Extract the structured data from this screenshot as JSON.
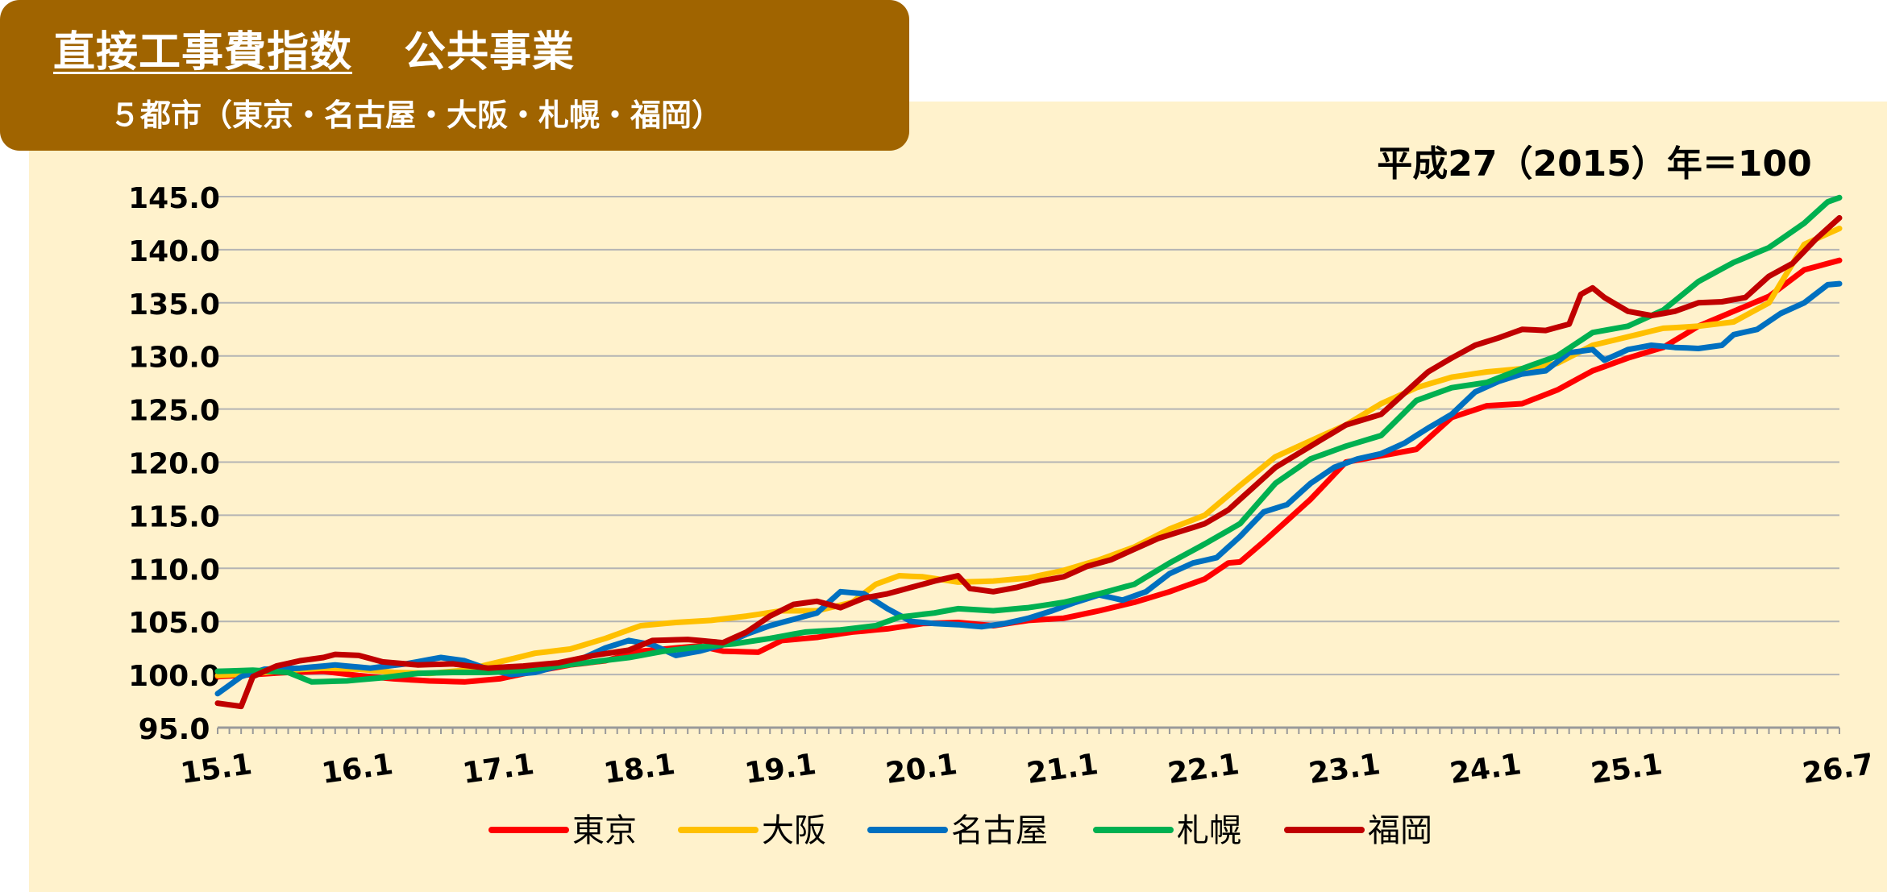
{
  "header": {
    "title": "直接工事費指数",
    "title_suffix": "公共事業",
    "subtitle": "５都市（東京・名古屋・大阪・札幌・福岡）"
  },
  "colors": {
    "title_bg": "#a06400",
    "panel_bg": "#fff2cc",
    "grid": "#b4b4b4"
  },
  "chart_data": {
    "type": "line",
    "base_note": "平成27（2015）年＝100",
    "x_start": "15.1",
    "x_end": "26.7",
    "x_ticks": [
      {
        "month": 0,
        "label": "15.1"
      },
      {
        "month": 12,
        "label": "16.1"
      },
      {
        "month": 24,
        "label": "17.1"
      },
      {
        "month": 36,
        "label": "18.1"
      },
      {
        "month": 48,
        "label": "19.1"
      },
      {
        "month": 60,
        "label": "20.1"
      },
      {
        "month": 72,
        "label": "21.1"
      },
      {
        "month": 84,
        "label": "22.1"
      },
      {
        "month": 96,
        "label": "23.1"
      },
      {
        "month": 108,
        "label": "24.1"
      },
      {
        "month": 120,
        "label": "25.1"
      },
      {
        "month": 138,
        "label": "26.7"
      }
    ],
    "y_ticks": [
      "145.0",
      "140.0",
      "135.0",
      "130.0",
      "125.0",
      "120.0",
      "115.0",
      "110.0",
      "105.0",
      "100.0",
      "95.0"
    ],
    "ylim": [
      95,
      145
    ],
    "grid": true,
    "legend_position": "bottom",
    "series": [
      {
        "name": "東京",
        "color": "#ff0000",
        "key_points": [
          [
            0,
            99.8
          ],
          [
            3,
            100.0
          ],
          [
            6,
            100.2
          ],
          [
            9,
            100.3
          ],
          [
            12,
            99.9
          ],
          [
            15,
            99.6
          ],
          [
            18,
            99.4
          ],
          [
            21,
            99.3
          ],
          [
            24,
            99.6
          ],
          [
            27,
            100.3
          ],
          [
            30,
            100.9
          ],
          [
            33,
            101.3
          ],
          [
            36,
            102.2
          ],
          [
            38,
            102.4
          ],
          [
            41,
            102.7
          ],
          [
            43,
            102.2
          ],
          [
            46,
            102.1
          ],
          [
            48,
            103.2
          ],
          [
            51,
            103.5
          ],
          [
            54,
            104.0
          ],
          [
            57,
            104.3
          ],
          [
            60,
            104.8
          ],
          [
            63,
            104.9
          ],
          [
            66,
            104.6
          ],
          [
            69,
            105.1
          ],
          [
            72,
            105.3
          ],
          [
            75,
            106.0
          ],
          [
            78,
            106.8
          ],
          [
            81,
            107.8
          ],
          [
            84,
            109.0
          ],
          [
            86,
            110.5
          ],
          [
            87,
            110.6
          ],
          [
            89,
            112.5
          ],
          [
            91,
            114.5
          ],
          [
            93,
            116.5
          ],
          [
            96,
            120.0
          ],
          [
            99,
            120.6
          ],
          [
            102,
            121.2
          ],
          [
            105,
            124.2
          ],
          [
            108,
            125.3
          ],
          [
            111,
            125.5
          ],
          [
            114,
            126.8
          ],
          [
            117,
            128.6
          ],
          [
            120,
            129.8
          ],
          [
            123,
            130.8
          ],
          [
            126,
            132.8
          ],
          [
            129,
            134.2
          ],
          [
            132,
            135.6
          ],
          [
            135,
            138.1
          ],
          [
            138,
            139.0
          ]
        ]
      },
      {
        "name": "大阪",
        "color": "#ffc000",
        "key_points": [
          [
            0,
            99.9
          ],
          [
            3,
            100.1
          ],
          [
            6,
            100.4
          ],
          [
            9,
            100.6
          ],
          [
            12,
            100.5
          ],
          [
            15,
            100.2
          ],
          [
            18,
            100.1
          ],
          [
            21,
            100.4
          ],
          [
            24,
            101.2
          ],
          [
            27,
            102.0
          ],
          [
            30,
            102.4
          ],
          [
            33,
            103.4
          ],
          [
            36,
            104.6
          ],
          [
            39,
            104.9
          ],
          [
            42,
            105.1
          ],
          [
            45,
            105.5
          ],
          [
            48,
            106.0
          ],
          [
            51,
            106.0
          ],
          [
            54,
            106.8
          ],
          [
            56,
            108.5
          ],
          [
            58,
            109.3
          ],
          [
            60,
            109.2
          ],
          [
            63,
            108.7
          ],
          [
            66,
            108.8
          ],
          [
            69,
            109.1
          ],
          [
            72,
            109.8
          ],
          [
            75,
            110.8
          ],
          [
            78,
            112.0
          ],
          [
            81,
            113.7
          ],
          [
            84,
            115.0
          ],
          [
            87,
            117.8
          ],
          [
            90,
            120.5
          ],
          [
            93,
            122.0
          ],
          [
            96,
            123.5
          ],
          [
            99,
            125.5
          ],
          [
            102,
            127.0
          ],
          [
            105,
            128.0
          ],
          [
            108,
            128.5
          ],
          [
            111,
            128.8
          ],
          [
            114,
            129.3
          ],
          [
            117,
            131.0
          ],
          [
            120,
            131.8
          ],
          [
            123,
            132.6
          ],
          [
            126,
            132.8
          ],
          [
            129,
            133.2
          ],
          [
            132,
            135.0
          ],
          [
            135,
            140.5
          ],
          [
            138,
            142.0
          ]
        ]
      },
      {
        "name": "名古屋",
        "color": "#0070c0",
        "key_points": [
          [
            0,
            98.2
          ],
          [
            2,
            99.8
          ],
          [
            4,
            100.5
          ],
          [
            7,
            100.6
          ],
          [
            10,
            100.9
          ],
          [
            13,
            100.6
          ],
          [
            16,
            101.0
          ],
          [
            19,
            101.6
          ],
          [
            21,
            101.3
          ],
          [
            23,
            100.5
          ],
          [
            25,
            100.0
          ],
          [
            27,
            100.2
          ],
          [
            29,
            100.8
          ],
          [
            31,
            101.5
          ],
          [
            33,
            102.5
          ],
          [
            35,
            103.2
          ],
          [
            37,
            102.8
          ],
          [
            39,
            101.8
          ],
          [
            41,
            102.2
          ],
          [
            43,
            102.8
          ],
          [
            45,
            103.8
          ],
          [
            47,
            104.6
          ],
          [
            49,
            105.2
          ],
          [
            51,
            105.8
          ],
          [
            53,
            107.8
          ],
          [
            55,
            107.6
          ],
          [
            57,
            106.2
          ],
          [
            59,
            105.0
          ],
          [
            61,
            104.8
          ],
          [
            63,
            104.7
          ],
          [
            65,
            104.5
          ],
          [
            67,
            104.8
          ],
          [
            69,
            105.3
          ],
          [
            71,
            106.0
          ],
          [
            73,
            106.8
          ],
          [
            75,
            107.5
          ],
          [
            77,
            107.0
          ],
          [
            79,
            107.8
          ],
          [
            81,
            109.5
          ],
          [
            83,
            110.5
          ],
          [
            85,
            111.0
          ],
          [
            87,
            113.0
          ],
          [
            89,
            115.3
          ],
          [
            91,
            116.0
          ],
          [
            93,
            118.0
          ],
          [
            95,
            119.5
          ],
          [
            97,
            120.3
          ],
          [
            99,
            120.8
          ],
          [
            101,
            121.8
          ],
          [
            103,
            123.2
          ],
          [
            105,
            124.5
          ],
          [
            107,
            126.6
          ],
          [
            109,
            127.6
          ],
          [
            111,
            128.3
          ],
          [
            113,
            128.6
          ],
          [
            115,
            130.3
          ],
          [
            117,
            130.6
          ],
          [
            118,
            129.6
          ],
          [
            120,
            130.6
          ],
          [
            122,
            131.0
          ],
          [
            124,
            130.8
          ],
          [
            126,
            130.7
          ],
          [
            128,
            131.0
          ],
          [
            129,
            132.0
          ],
          [
            131,
            132.5
          ],
          [
            133,
            134.0
          ],
          [
            135,
            135.0
          ],
          [
            137,
            136.7
          ],
          [
            138,
            136.8
          ]
        ]
      },
      {
        "name": "札幌",
        "color": "#00b050",
        "key_points": [
          [
            0,
            100.3
          ],
          [
            3,
            100.4
          ],
          [
            6,
            100.2
          ],
          [
            8,
            99.3
          ],
          [
            11,
            99.4
          ],
          [
            14,
            99.7
          ],
          [
            17,
            100.1
          ],
          [
            20,
            100.2
          ],
          [
            23,
            100.2
          ],
          [
            26,
            100.4
          ],
          [
            29,
            100.8
          ],
          [
            32,
            101.2
          ],
          [
            35,
            101.6
          ],
          [
            38,
            102.2
          ],
          [
            41,
            102.6
          ],
          [
            44,
            102.9
          ],
          [
            47,
            103.4
          ],
          [
            50,
            104.0
          ],
          [
            53,
            104.2
          ],
          [
            56,
            104.6
          ],
          [
            58,
            105.4
          ],
          [
            61,
            105.8
          ],
          [
            63,
            106.2
          ],
          [
            66,
            106.0
          ],
          [
            69,
            106.3
          ],
          [
            72,
            106.8
          ],
          [
            75,
            107.6
          ],
          [
            78,
            108.5
          ],
          [
            81,
            110.5
          ],
          [
            84,
            112.3
          ],
          [
            87,
            114.2
          ],
          [
            90,
            118.0
          ],
          [
            93,
            120.3
          ],
          [
            96,
            121.5
          ],
          [
            99,
            122.5
          ],
          [
            102,
            125.8
          ],
          [
            105,
            127.0
          ],
          [
            108,
            127.5
          ],
          [
            111,
            128.8
          ],
          [
            114,
            130.0
          ],
          [
            117,
            132.2
          ],
          [
            120,
            132.8
          ],
          [
            123,
            134.3
          ],
          [
            126,
            137.0
          ],
          [
            129,
            138.8
          ],
          [
            132,
            140.2
          ],
          [
            135,
            142.5
          ],
          [
            137,
            144.5
          ],
          [
            138,
            144.9
          ]
        ]
      },
      {
        "name": "福岡",
        "color": "#c00000",
        "key_points": [
          [
            0,
            97.3
          ],
          [
            2,
            97.0
          ],
          [
            3,
            99.8
          ],
          [
            5,
            100.8
          ],
          [
            7,
            101.3
          ],
          [
            9,
            101.6
          ],
          [
            10,
            101.9
          ],
          [
            12,
            101.8
          ],
          [
            14,
            101.2
          ],
          [
            17,
            100.9
          ],
          [
            20,
            101.0
          ],
          [
            23,
            100.6
          ],
          [
            26,
            100.8
          ],
          [
            29,
            101.1
          ],
          [
            32,
            101.8
          ],
          [
            35,
            102.3
          ],
          [
            37,
            103.2
          ],
          [
            40,
            103.3
          ],
          [
            43,
            103.0
          ],
          [
            45,
            104.0
          ],
          [
            47,
            105.5
          ],
          [
            49,
            106.6
          ],
          [
            51,
            106.9
          ],
          [
            53,
            106.3
          ],
          [
            55,
            107.2
          ],
          [
            57,
            107.6
          ],
          [
            59,
            108.2
          ],
          [
            61,
            108.8
          ],
          [
            63,
            109.3
          ],
          [
            64,
            108.1
          ],
          [
            66,
            107.8
          ],
          [
            68,
            108.2
          ],
          [
            70,
            108.8
          ],
          [
            72,
            109.2
          ],
          [
            74,
            110.2
          ],
          [
            76,
            110.8
          ],
          [
            78,
            111.8
          ],
          [
            80,
            112.8
          ],
          [
            82,
            113.5
          ],
          [
            84,
            114.2
          ],
          [
            86,
            115.5
          ],
          [
            88,
            117.5
          ],
          [
            90,
            119.5
          ],
          [
            93,
            121.5
          ],
          [
            96,
            123.5
          ],
          [
            99,
            124.5
          ],
          [
            101,
            126.5
          ],
          [
            103,
            128.5
          ],
          [
            105,
            129.8
          ],
          [
            107,
            131.0
          ],
          [
            109,
            131.7
          ],
          [
            111,
            132.5
          ],
          [
            113,
            132.4
          ],
          [
            115,
            133.0
          ],
          [
            116,
            135.8
          ],
          [
            117,
            136.4
          ],
          [
            118,
            135.5
          ],
          [
            120,
            134.2
          ],
          [
            122,
            133.8
          ],
          [
            124,
            134.2
          ],
          [
            126,
            135.0
          ],
          [
            128,
            135.1
          ],
          [
            130,
            135.5
          ],
          [
            132,
            137.5
          ],
          [
            134,
            138.7
          ],
          [
            136,
            141.0
          ],
          [
            138,
            143.0
          ]
        ]
      }
    ]
  }
}
